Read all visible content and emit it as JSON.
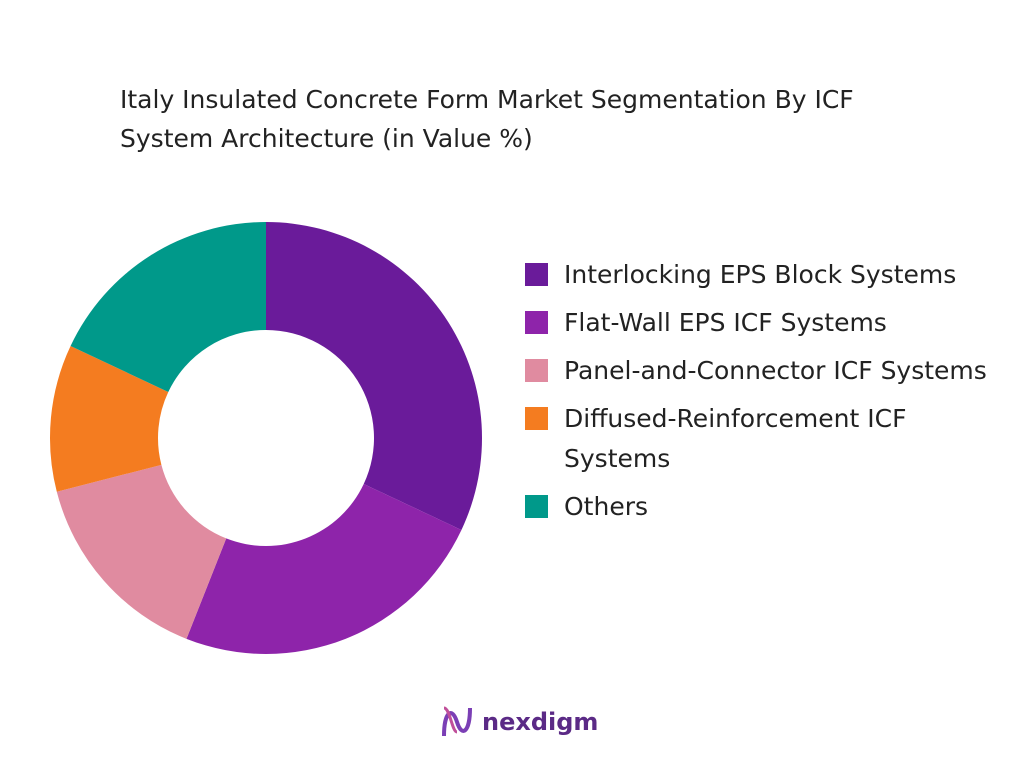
{
  "chart_data": {
    "type": "donut",
    "title": "Italy Insulated Concrete Form Market Segmentation By ICF System Architecture (in Value %)",
    "categories": [
      "Interlocking EPS Block Systems",
      "Flat-Wall EPS ICF Systems",
      "Panel-and-Connector ICF Systems",
      "Diffused-Reinforcement ICF Systems",
      "Others"
    ],
    "values": [
      32,
      24,
      15,
      11,
      18
    ],
    "colors": [
      "#6a1b9a",
      "#8e24aa",
      "#e08ba0",
      "#f47c20",
      "#00998a"
    ],
    "legend": "right"
  },
  "logo": "nexdigm"
}
